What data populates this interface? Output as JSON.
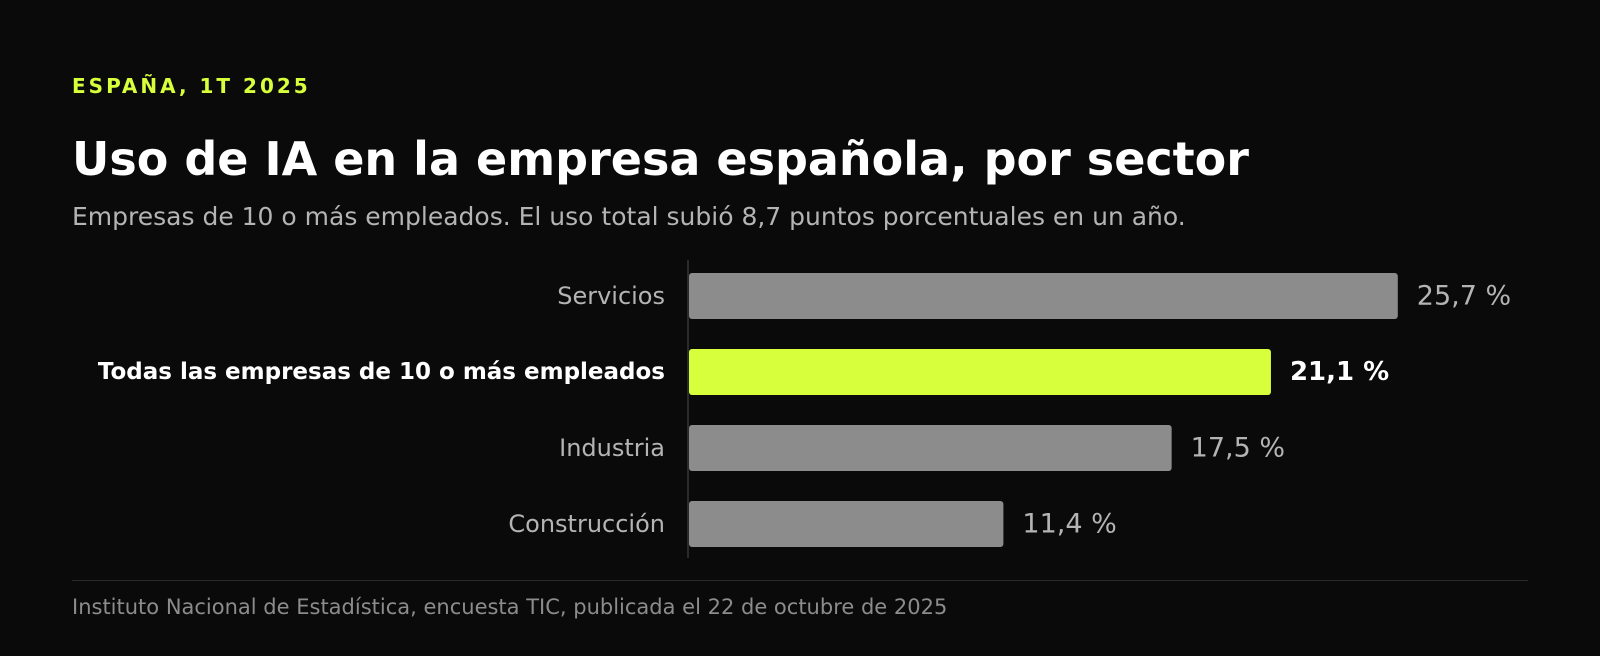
{
  "header": {
    "eyebrow": "ESPAÑA, 1T 2025",
    "title": "Uso de IA en la empresa española, por sector",
    "subtitle": "Empresas de 10 o más empleados. El uso total subió 8,7 puntos porcentuales en un año."
  },
  "footer": {
    "source": "Instituto Nacional de Estadística, encuesta TIC, publicada el 22 de octubre de 2025"
  },
  "colors": {
    "background": "#0a0a0a",
    "bar_default": "#8c8c8c",
    "bar_highlight": "#d8ff3c",
    "label_default": "#b4b4b4",
    "label_highlight": "#ffffff"
  },
  "chart_data": {
    "type": "bar",
    "orientation": "horizontal",
    "categories": [
      "Servicios",
      "Todas las empresas de 10 o más empleados",
      "Industria",
      "Construcción"
    ],
    "values": [
      25.7,
      21.1,
      17.5,
      11.4
    ],
    "value_labels": [
      "25,7 %",
      "21,1 %",
      "17,5 %",
      "11,4 %"
    ],
    "highlight_index": 1,
    "unit": "%",
    "xlim": [
      0,
      30
    ],
    "grid": false
  }
}
